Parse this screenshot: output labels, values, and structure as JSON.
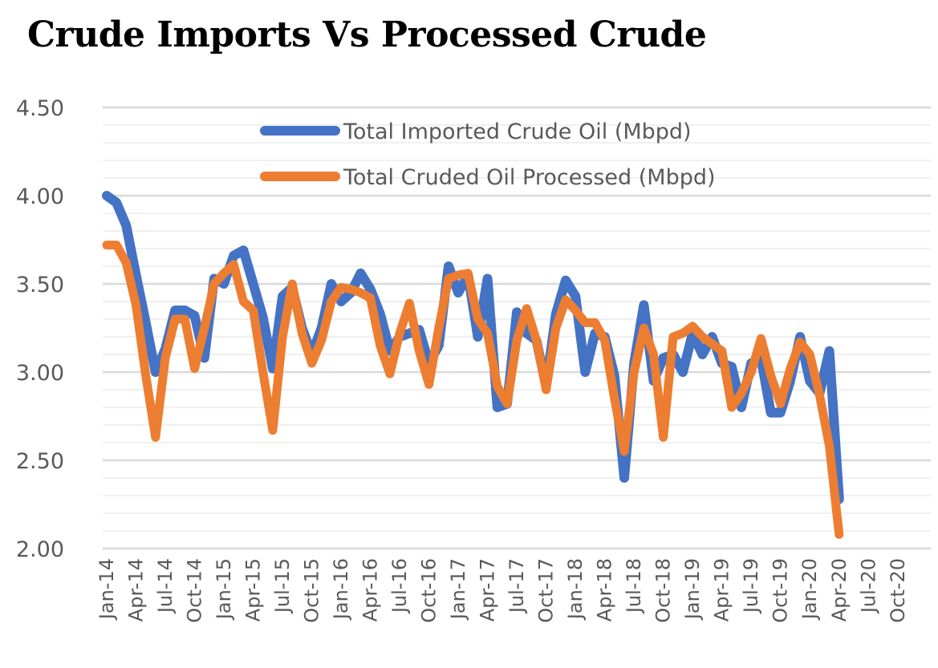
{
  "chart_data": {
    "type": "line",
    "title": "Crude Imports Vs Processed Crude",
    "xlabel": "",
    "ylabel": "",
    "ylim": [
      2.0,
      4.5
    ],
    "yticks": [
      "2.00",
      "2.50",
      "3.00",
      "3.50",
      "4.00",
      "4.50"
    ],
    "ytick_values": [
      2.0,
      2.5,
      3.0,
      3.5,
      4.0,
      4.5
    ],
    "minor_grid_step": 0.1,
    "grid": true,
    "legend_position": "top-center",
    "x_months_total": 84,
    "xtick_labels": [
      "Jan-14",
      "Apr-14",
      "Jul-14",
      "Oct-14",
      "Jan-15",
      "Apr-15",
      "Jul-15",
      "Oct-15",
      "Jan-16",
      "Apr-16",
      "Jul-16",
      "Oct-16",
      "Jan-17",
      "Apr-17",
      "Jul-17",
      "Oct-17",
      "Jan-18",
      "Apr-18",
      "Jul-18",
      "Oct-18",
      "Jan-19",
      "Apr-19",
      "Jul-19",
      "Oct-19",
      "Jan-20",
      "Apr-20",
      "Jul-20",
      "Oct-20"
    ],
    "x_start": "Jan-14",
    "x_end_data": "Apr-20",
    "series": [
      {
        "name": "Total Imported Crude Oil (Mbpd)",
        "color": "#4472C4",
        "values": [
          4.0,
          3.96,
          3.83,
          3.55,
          3.28,
          3.0,
          3.13,
          3.35,
          3.35,
          3.32,
          3.08,
          3.53,
          3.5,
          3.66,
          3.69,
          3.5,
          3.31,
          3.02,
          3.43,
          3.48,
          3.25,
          3.1,
          3.25,
          3.5,
          3.4,
          3.45,
          3.56,
          3.47,
          3.33,
          3.12,
          3.2,
          3.22,
          3.24,
          3.05,
          3.15,
          3.6,
          3.45,
          3.55,
          3.2,
          3.53,
          2.8,
          2.82,
          3.34,
          3.22,
          3.18,
          2.92,
          3.33,
          3.52,
          3.43,
          3.0,
          3.22,
          3.2,
          2.98,
          2.4,
          3.05,
          3.38,
          2.95,
          3.08,
          3.1,
          3.0,
          3.22,
          3.1,
          3.2,
          3.05,
          3.03,
          2.8,
          3.05,
          3.08,
          2.77,
          2.77,
          2.95,
          3.2,
          2.95,
          2.88,
          3.12,
          2.28
        ]
      },
      {
        "name": "Total Cruded Oil Processed (Mbpd)",
        "color": "#ED7D31",
        "values": [
          3.72,
          3.72,
          3.62,
          3.38,
          2.98,
          2.63,
          3.08,
          3.3,
          3.3,
          3.02,
          3.25,
          3.5,
          3.56,
          3.61,
          3.4,
          3.35,
          3.0,
          2.67,
          3.2,
          3.5,
          3.22,
          3.05,
          3.18,
          3.4,
          3.48,
          3.47,
          3.45,
          3.42,
          3.15,
          2.99,
          3.22,
          3.39,
          3.12,
          2.93,
          3.25,
          3.53,
          3.55,
          3.56,
          3.3,
          3.22,
          2.92,
          2.82,
          3.18,
          3.36,
          3.18,
          2.9,
          3.25,
          3.41,
          3.35,
          3.28,
          3.28,
          3.18,
          2.85,
          2.55,
          3.0,
          3.25,
          3.1,
          2.63,
          3.2,
          3.22,
          3.26,
          3.2,
          3.16,
          3.12,
          2.8,
          2.88,
          3.0,
          3.19,
          2.98,
          2.82,
          3.02,
          3.17,
          3.1,
          2.87,
          2.58,
          2.08
        ]
      }
    ]
  }
}
